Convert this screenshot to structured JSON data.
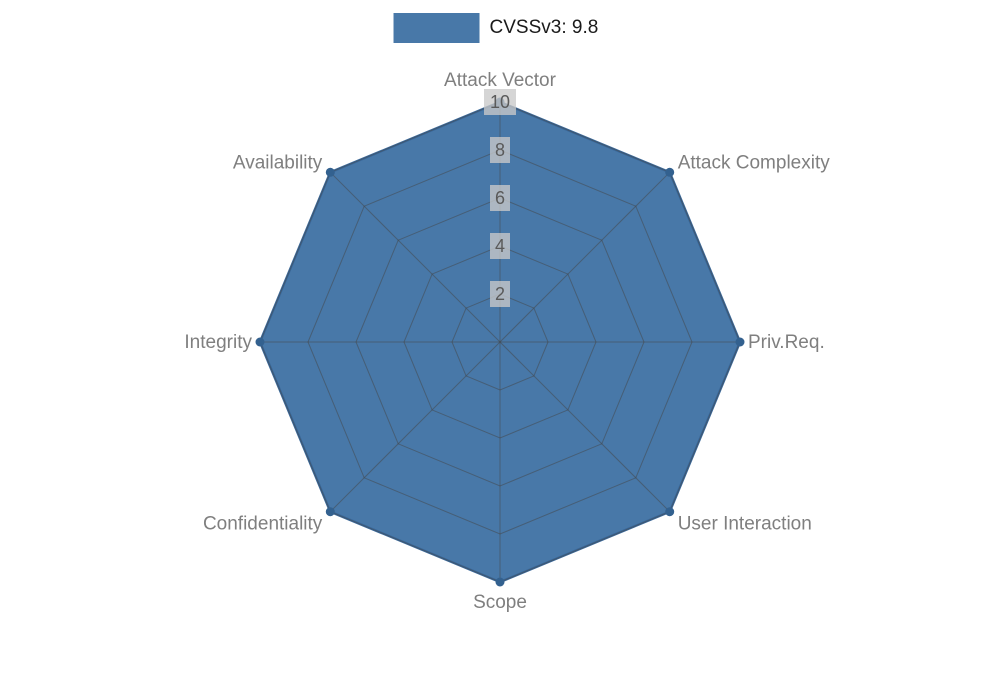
{
  "legend": {
    "label": "CVSSv3: 9.8",
    "swatch_color": "#4878a8"
  },
  "chart_data": {
    "type": "radar",
    "title": "CVSSv3: 9.8",
    "categories": [
      "Attack Vector",
      "Attack Complexity",
      "Priv.Req.",
      "User Interaction",
      "Scope",
      "Confidentiality",
      "Integrity",
      "Availability"
    ],
    "series": [
      {
        "name": "CVSSv3: 9.8",
        "values": [
          10,
          10,
          10,
          10,
          10,
          10,
          10,
          10
        ]
      }
    ],
    "ticks": [
      2,
      4,
      6,
      8,
      10
    ],
    "rlim": [
      0,
      10
    ],
    "start_angle": "top",
    "direction": "clockwise",
    "grid": true,
    "legend_position": "top-center",
    "fill_color": "#4878a8",
    "fill_stroke_color": "#3a699b",
    "marker_color": "#33618f",
    "grid_color": "#444444",
    "axis_label_color": "#7f7f7f",
    "tick_label_color": "#5a5a5a",
    "tick_box_color": "#c9c9c9"
  }
}
